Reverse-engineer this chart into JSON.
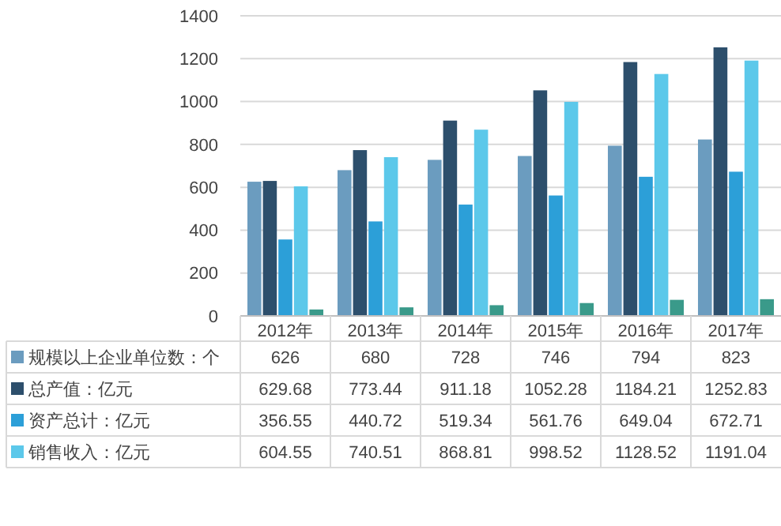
{
  "chart_data": {
    "type": "bar",
    "categories": [
      "2012年",
      "2013年",
      "2014年",
      "2015年",
      "2016年",
      "2017年"
    ],
    "ylim": [
      0,
      1400
    ],
    "yticks": [
      0,
      200,
      400,
      600,
      800,
      1000,
      1200,
      1400
    ],
    "grid": "y",
    "legend": "bottom",
    "series": [
      {
        "name": "规模以上企业单位数：个",
        "color": "#6b9cbf",
        "values": [
          626,
          680,
          728,
          746,
          794,
          823
        ],
        "value_labels": [
          "626",
          "680",
          "728",
          "746",
          "794",
          "823"
        ]
      },
      {
        "name": "总产值：亿元",
        "color": "#2d4f6c",
        "values": [
          629.68,
          773.44,
          911.18,
          1052.28,
          1184.21,
          1252.83
        ],
        "value_labels": [
          "629.68",
          "773.44",
          "911.18",
          "1052.28",
          "1184.21",
          "1252.83"
        ]
      },
      {
        "name": "资产总计：亿元",
        "color": "#2c9fd8",
        "values": [
          356.55,
          440.72,
          519.34,
          561.76,
          649.04,
          672.71
        ],
        "value_labels": [
          "356.55",
          "440.72",
          "519.34",
          "561.76",
          "649.04",
          "672.71"
        ]
      },
      {
        "name": "销售收入：亿元",
        "color": "#5cc8ea",
        "values": [
          604.55,
          740.51,
          868.81,
          998.52,
          1128.52,
          1191.04
        ],
        "value_labels": [
          "604.55",
          "740.51",
          "868.81",
          "998.52",
          "1128.52",
          "1191.04"
        ]
      },
      {
        "color": "#3a9a8a",
        "values": [
          30,
          40,
          50,
          60,
          75,
          78
        ]
      }
    ]
  }
}
